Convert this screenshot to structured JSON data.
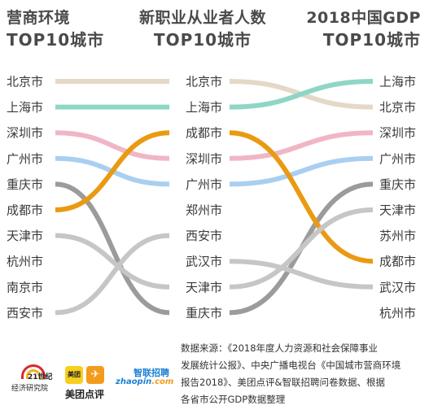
{
  "headers": {
    "left": {
      "line1": "营商环境",
      "line2": "TOP10城市"
    },
    "mid": {
      "line1": "新职业从业者人数",
      "line2": "TOP10城市"
    },
    "right": {
      "line1": "2018中国GDP",
      "line2": "TOP10城市"
    }
  },
  "chart_data": {
    "type": "bump",
    "columns": [
      "营商环境 TOP10城市",
      "新职业从业者人数 TOP10城市",
      "2018中国GDP TOP10城市"
    ],
    "rankings": [
      [
        "北京市",
        "上海市",
        "深圳市",
        "广州市",
        "重庆市",
        "成都市",
        "天津市",
        "杭州市",
        "南京市",
        "西安市"
      ],
      [
        "北京市",
        "上海市",
        "成都市",
        "深圳市",
        "广州市",
        "郑州市",
        "西安市",
        "武汉市",
        "天津市",
        "重庆市"
      ],
      [
        "上海市",
        "北京市",
        "深圳市",
        "广州市",
        "重庆市",
        "天津市",
        "苏州市",
        "成都市",
        "武汉市",
        "杭州市"
      ]
    ],
    "series": [
      {
        "name": "北京市",
        "ranks": [
          1,
          1,
          2
        ],
        "color": "#e5d8c6"
      },
      {
        "name": "上海市",
        "ranks": [
          2,
          2,
          1
        ],
        "color": "#8ed6c6"
      },
      {
        "name": "深圳市",
        "ranks": [
          3,
          4,
          3
        ],
        "color": "#f0b6c6"
      },
      {
        "name": "广州市",
        "ranks": [
          4,
          5,
          4
        ],
        "color": "#a9cff0"
      },
      {
        "name": "重庆市",
        "ranks": [
          5,
          10,
          5
        ],
        "color": "#9b9b9b"
      },
      {
        "name": "成都市",
        "ranks": [
          6,
          3,
          8
        ],
        "color": "#ea9a12"
      },
      {
        "name": "天津市",
        "ranks": [
          7,
          9,
          6
        ],
        "color": "#c6c6c6"
      },
      {
        "name": "西安市",
        "ranks": [
          10,
          7,
          null
        ],
        "color": "#c6c6c6"
      },
      {
        "name": "武汉市",
        "ranks": [
          null,
          8,
          9
        ],
        "color": "#c6c6c6"
      },
      {
        "name": "杭州市",
        "ranks": [
          8,
          null,
          10
        ],
        "color": "#c6c6c6"
      }
    ]
  },
  "source": {
    "lines": [
      "数据来源：《2018年度人力资源和社会保障事业",
      "发展统计公报》、中央广播电视台《中国城市营商环境",
      "报告2018》、美团点评&智联招聘问卷数据、根据",
      "各省市公开GDP数据整理"
    ]
  },
  "logos": {
    "c21": {
      "line1": "21世纪",
      "line2": "经济研究院"
    },
    "meituan": {
      "tile1": "美团",
      "tile2": "✈",
      "name": "美团点评"
    },
    "zhaopin": {
      "top": "智联招聘",
      "word1": "zhaopin",
      "word2": ".com"
    }
  }
}
